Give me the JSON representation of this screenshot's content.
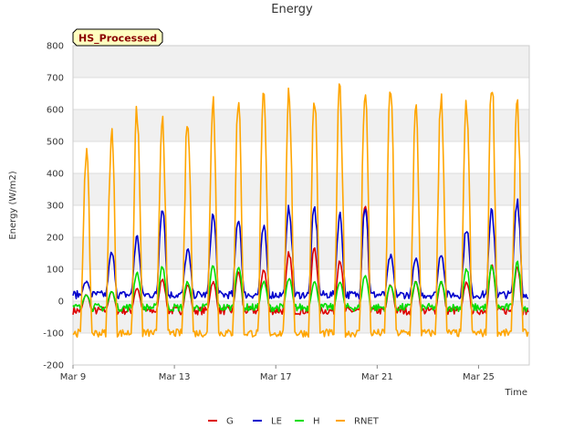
{
  "chart_data": {
    "type": "line",
    "title": "Energy",
    "xlabel": "Time",
    "ylabel": "Energy (W/m2)",
    "badge": "HS_Processed",
    "ylim": [
      -200,
      800
    ],
    "yticks": [
      -200,
      -100,
      0,
      100,
      200,
      300,
      400,
      500,
      600,
      700,
      800
    ],
    "xlim": [
      "2020-03-09",
      "2020-03-27"
    ],
    "xticks": [
      {
        "date": "2020-03-09",
        "label": "Mar 9"
      },
      {
        "date": "2020-03-13",
        "label": "Mar 13"
      },
      {
        "date": "2020-03-17",
        "label": "Mar 17"
      },
      {
        "date": "2020-03-21",
        "label": "Mar 21"
      },
      {
        "date": "2020-03-25",
        "label": "Mar 25"
      }
    ],
    "days": [
      "2020-03-09",
      "2020-03-10",
      "2020-03-11",
      "2020-03-12",
      "2020-03-13",
      "2020-03-14",
      "2020-03-15",
      "2020-03-16",
      "2020-03-17",
      "2020-03-18",
      "2020-03-19",
      "2020-03-20",
      "2020-03-21",
      "2020-03-22",
      "2020-03-23",
      "2020-03-24",
      "2020-03-25",
      "2020-03-26"
    ],
    "series": [
      {
        "name": "G",
        "color": "#dd0000",
        "daily_max": [
          20,
          30,
          40,
          70,
          50,
          60,
          90,
          100,
          150,
          170,
          130,
          300,
          50,
          60,
          60,
          60,
          110,
          110
        ],
        "night_value": -30
      },
      {
        "name": "LE",
        "color": "#0000cc",
        "daily_max": [
          60,
          150,
          200,
          300,
          160,
          270,
          260,
          230,
          290,
          290,
          270,
          300,
          140,
          130,
          150,
          230,
          280,
          320
        ],
        "night_value": 20
      },
      {
        "name": "H",
        "color": "#00dd00",
        "daily_max": [
          20,
          30,
          90,
          110,
          60,
          110,
          110,
          60,
          70,
          60,
          60,
          80,
          50,
          60,
          60,
          100,
          110,
          120
        ],
        "night_value": -20
      },
      {
        "name": "RNET",
        "color": "#ffa500",
        "daily_max": [
          470,
          530,
          590,
          590,
          580,
          635,
          635,
          640,
          645,
          640,
          670,
          675,
          680,
          600,
          650,
          620,
          700,
          640
        ],
        "night_value": -100
      }
    ],
    "legend_position": "bottom",
    "grid": true
  }
}
